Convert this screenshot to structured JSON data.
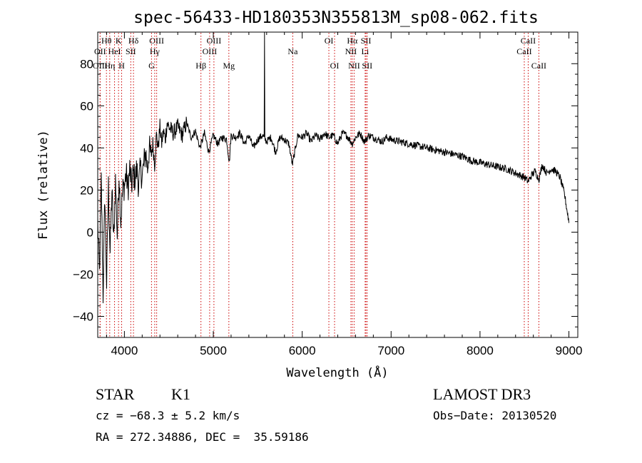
{
  "chart_data": {
    "type": "line",
    "title": "spec-56433-HD180353N355813M_sp08-062.fits",
    "xlabel": "Wavelength (Å)",
    "ylabel": "Flux (relative)",
    "xlim": [
      3700,
      9100
    ],
    "ylim": [
      -50,
      95
    ],
    "xticks": [
      4000,
      5000,
      6000,
      7000,
      8000,
      9000
    ],
    "yticks": [
      -40,
      -20,
      0,
      20,
      40,
      60,
      80
    ],
    "series": [
      {
        "name": "flux",
        "x": [
          3700,
          3720,
          3740,
          3760,
          3780,
          3800,
          3820,
          3840,
          3860,
          3880,
          3900,
          3920,
          3940,
          3960,
          3980,
          4000,
          4020,
          4040,
          4060,
          4080,
          4100,
          4120,
          4140,
          4160,
          4180,
          4200,
          4220,
          4240,
          4260,
          4280,
          4300,
          4320,
          4340,
          4360,
          4380,
          4400,
          4420,
          4440,
          4460,
          4480,
          4500,
          4550,
          4600,
          4650,
          4700,
          4750,
          4800,
          4850,
          4900,
          4950,
          5000,
          5050,
          5100,
          5150,
          5180,
          5200,
          5250,
          5300,
          5350,
          5400,
          5450,
          5500,
          5550,
          5600,
          5650,
          5700,
          5750,
          5800,
          5850,
          5890,
          5950,
          6000,
          6050,
          6100,
          6150,
          6200,
          6250,
          6300,
          6350,
          6400,
          6450,
          6500,
          6563,
          6600,
          6650,
          6700,
          6750,
          6800,
          6850,
          6900,
          6950,
          7000,
          7100,
          7200,
          7300,
          7400,
          7500,
          7600,
          7700,
          7800,
          7900,
          8000,
          8100,
          8200,
          8300,
          8400,
          8450,
          8500,
          8542,
          8580,
          8620,
          8662,
          8700,
          8750,
          8800,
          8850,
          8900,
          8950,
          9000
        ],
        "y": [
          5,
          -20,
          25,
          -30,
          18,
          -25,
          22,
          -10,
          20,
          -5,
          25,
          -2,
          28,
          5,
          20,
          22,
          28,
          20,
          30,
          22,
          28,
          25,
          30,
          22,
          30,
          26,
          33,
          38,
          30,
          40,
          36,
          42,
          32,
          46,
          40,
          50,
          42,
          48,
          44,
          52,
          50,
          47,
          50,
          46,
          52,
          45,
          48,
          40,
          47,
          38,
          46,
          42,
          45,
          44,
          33,
          46,
          45,
          47,
          42,
          46,
          40,
          44,
          46,
          43,
          45,
          38,
          45,
          44,
          42,
          32,
          46,
          45,
          47,
          43,
          46,
          44,
          47,
          45,
          46,
          42,
          47,
          46,
          42,
          45,
          47,
          43,
          46,
          45,
          44,
          43,
          45,
          44,
          43,
          42,
          41,
          40,
          39,
          38,
          37,
          36,
          34,
          33,
          32,
          31,
          30,
          28,
          27,
          26,
          24,
          27,
          29,
          25,
          32,
          28,
          30,
          29,
          26,
          18,
          5
        ]
      }
    ],
    "spike_at": 5577,
    "lines": [
      {
        "label": "Hθ",
        "x": 3798,
        "row": 1
      },
      {
        "label": "OII",
        "x": 3727,
        "row": 2
      },
      {
        "label": "OIII",
        "x": 3727,
        "row": 3
      },
      {
        "label": "K",
        "x": 3934,
        "row": 1
      },
      {
        "label": "HeI",
        "x": 3889,
        "row": 2
      },
      {
        "label": "Hη",
        "x": 3835,
        "row": 3
      },
      {
        "label": "Hδ",
        "x": 4102,
        "row": 1
      },
      {
        "label": "SII",
        "x": 4072,
        "row": 2
      },
      {
        "label": "H",
        "x": 3969,
        "row": 3
      },
      {
        "label": "OIII",
        "x": 4363,
        "row": 1
      },
      {
        "label": "Hγ",
        "x": 4341,
        "row": 2
      },
      {
        "label": "G",
        "x": 4305,
        "row": 3
      },
      {
        "label": "OIII",
        "x": 5007,
        "row": 1
      },
      {
        "label": "OIII",
        "x": 4959,
        "row": 2
      },
      {
        "label": "Hβ",
        "x": 4861,
        "row": 3
      },
      {
        "label": "Mg",
        "x": 5175,
        "row": 3
      },
      {
        "label": "Na",
        "x": 5894,
        "row": 2
      },
      {
        "label": "OI",
        "x": 6300,
        "row": 1
      },
      {
        "label": "OI",
        "x": 6364,
        "row": 3
      },
      {
        "label": "Hα",
        "x": 6563,
        "row": 1
      },
      {
        "label": "NII",
        "x": 6548,
        "row": 2
      },
      {
        "label": "NII",
        "x": 6584,
        "row": 3
      },
      {
        "label": "SII",
        "x": 6717,
        "row": 1
      },
      {
        "label": "Li",
        "x": 6708,
        "row": 2
      },
      {
        "label": "SII",
        "x": 6731,
        "row": 3
      },
      {
        "label": "CaII",
        "x": 8542,
        "row": 1
      },
      {
        "label": "CaII",
        "x": 8498,
        "row": 2
      },
      {
        "label": "CaII",
        "x": 8662,
        "row": 3
      }
    ]
  },
  "info": {
    "class_label": "STAR",
    "subclass": "K1",
    "survey": "LAMOST DR3",
    "redshift": "cz = −68.3 ± 5.2 km/s",
    "obs_date": "Obs−Date: 20130520",
    "coords": "RA = 272.34886, DEC =  35.59186"
  }
}
